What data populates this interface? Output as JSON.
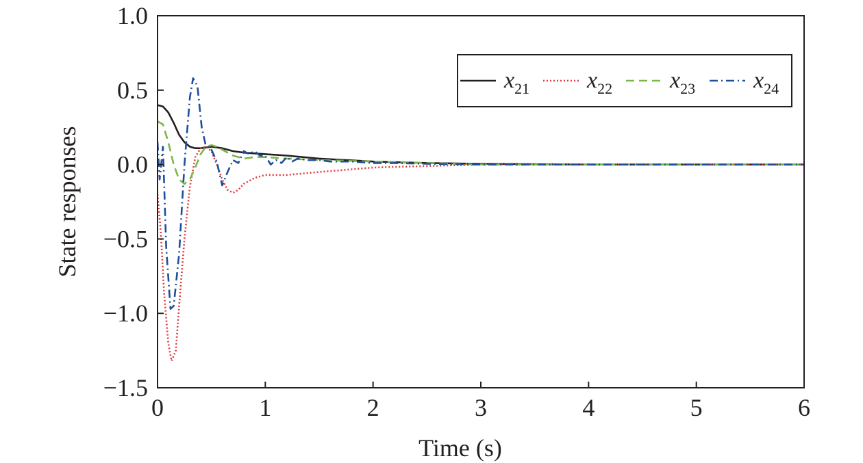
{
  "chart_data": {
    "type": "line",
    "title": "",
    "xlabel": "Time (s)",
    "ylabel": "State responses",
    "xlim": [
      0,
      6
    ],
    "ylim": [
      -1.5,
      1.0
    ],
    "xticks": [
      "0",
      "1",
      "2",
      "3",
      "4",
      "5",
      "6"
    ],
    "yticks": [
      "1.0",
      "0.5",
      "0.0",
      "−0.5",
      "−1.0",
      "−1.5"
    ],
    "grid": false,
    "legend_position": "top-right",
    "series": [
      {
        "name": "x21",
        "symbol": "x",
        "subscript": "21",
        "color": "#231f20",
        "dash": "solid",
        "x": [
          0,
          0.05,
          0.1,
          0.15,
          0.2,
          0.25,
          0.3,
          0.35,
          0.4,
          0.5,
          0.6,
          0.7,
          0.8,
          1.0,
          1.2,
          1.5,
          2.0,
          2.5,
          3.0,
          4.0,
          5.0,
          6.0
        ],
        "y": [
          0.4,
          0.39,
          0.35,
          0.28,
          0.2,
          0.15,
          0.12,
          0.11,
          0.11,
          0.12,
          0.11,
          0.09,
          0.08,
          0.07,
          0.06,
          0.04,
          0.02,
          0.01,
          0.005,
          0.0,
          0.0,
          0.0
        ]
      },
      {
        "name": "x22",
        "symbol": "x",
        "subscript": "22",
        "color": "#e0393e",
        "dash": "dotted",
        "x": [
          0,
          0.03,
          0.06,
          0.1,
          0.13,
          0.17,
          0.2,
          0.25,
          0.3,
          0.35,
          0.4,
          0.45,
          0.5,
          0.55,
          0.6,
          0.65,
          0.7,
          0.75,
          0.8,
          0.9,
          1.0,
          1.2,
          1.5,
          2.0,
          2.5,
          3.0,
          4.0,
          5.0,
          6.0
        ],
        "y": [
          -0.2,
          -0.45,
          -0.85,
          -1.2,
          -1.32,
          -1.25,
          -0.95,
          -0.5,
          -0.15,
          0.05,
          0.11,
          0.12,
          0.09,
          0.0,
          -0.1,
          -0.17,
          -0.19,
          -0.17,
          -0.13,
          -0.09,
          -0.07,
          -0.07,
          -0.05,
          -0.02,
          -0.01,
          0.0,
          0.0,
          0.0,
          0.0
        ]
      },
      {
        "name": "x23",
        "symbol": "x",
        "subscript": "23",
        "color": "#7ab648",
        "dash": "dashed",
        "x": [
          0,
          0.05,
          0.1,
          0.15,
          0.2,
          0.25,
          0.3,
          0.35,
          0.4,
          0.45,
          0.5,
          0.55,
          0.6,
          0.7,
          0.8,
          0.9,
          1.0,
          1.2,
          1.5,
          2.0,
          2.5,
          3.0,
          4.0,
          5.0,
          6.0
        ],
        "y": [
          0.29,
          0.27,
          0.15,
          0.0,
          -0.1,
          -0.13,
          -0.1,
          -0.02,
          0.07,
          0.12,
          0.13,
          0.12,
          0.1,
          0.06,
          0.04,
          0.05,
          0.05,
          0.04,
          0.03,
          0.02,
          0.01,
          0.0,
          0.0,
          0.0,
          0.0
        ]
      },
      {
        "name": "x24",
        "symbol": "x",
        "subscript": "24",
        "color": "#1f4e9a",
        "dash": "dashdot",
        "x": [
          0,
          0.02,
          0.05,
          0.08,
          0.12,
          0.15,
          0.2,
          0.25,
          0.3,
          0.33,
          0.37,
          0.41,
          0.45,
          0.5,
          0.55,
          0.6,
          0.65,
          0.7,
          0.75,
          0.8,
          0.85,
          0.9,
          0.95,
          1.0,
          1.05,
          1.1,
          1.15,
          1.2,
          1.25,
          1.3,
          1.4,
          1.5,
          1.6,
          1.8,
          2.0,
          2.2,
          2.5,
          3.0,
          4.0,
          5.0,
          6.0
        ],
        "y": [
          0.15,
          -0.1,
          0.12,
          -0.55,
          -0.97,
          -0.95,
          -0.6,
          0.0,
          0.45,
          0.58,
          0.53,
          0.25,
          0.12,
          0.1,
          0.02,
          -0.14,
          -0.05,
          0.03,
          0.01,
          0.09,
          0.07,
          0.09,
          0.06,
          0.06,
          0.0,
          0.03,
          0.01,
          0.05,
          0.02,
          0.04,
          0.03,
          0.03,
          0.02,
          0.02,
          0.01,
          0.01,
          0.005,
          0.0,
          0.0,
          0.0,
          0.0
        ]
      }
    ]
  }
}
